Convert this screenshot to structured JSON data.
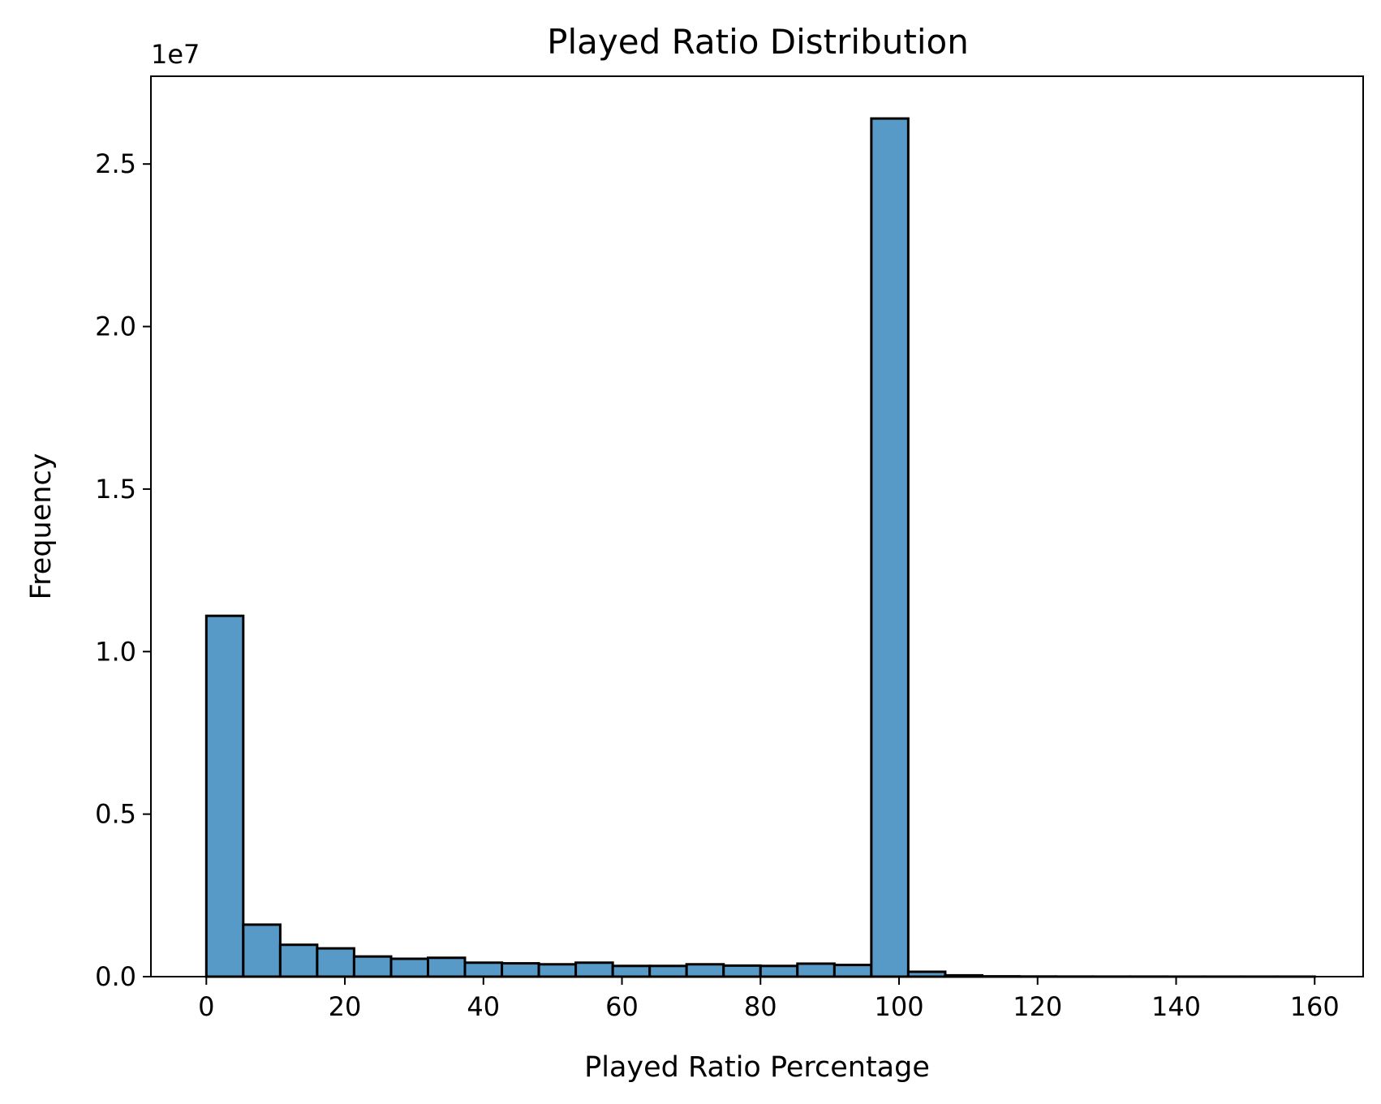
{
  "chart_data": {
    "type": "bar",
    "title": "Played Ratio Distribution",
    "xlabel": "Played Ratio Percentage",
    "ylabel": "Frequency",
    "y_offset_label": "1e7",
    "bar_color": "#5799c7",
    "edge_color": "#000000",
    "xlim": [
      -8,
      167
    ],
    "ylim": [
      0,
      2.77
    ],
    "grid": false,
    "x_ticks": [
      0,
      20,
      40,
      60,
      80,
      100,
      120,
      140,
      160
    ],
    "x_tick_labels": [
      "0",
      "20",
      "40",
      "60",
      "80",
      "100",
      "120",
      "140",
      "160"
    ],
    "y_ticks": [
      0,
      0.5,
      1.0,
      1.5,
      2.0,
      2.5
    ],
    "y_tick_labels": [
      "0.0",
      "0.5",
      "1.0",
      "1.5",
      "2.0",
      "2.5"
    ],
    "bin_edges": [
      0,
      5.33,
      10.67,
      16,
      21.33,
      26.67,
      32,
      37.33,
      42.67,
      48,
      53.33,
      58.67,
      64,
      69.33,
      74.67,
      80,
      85.33,
      90.67,
      96,
      101.33,
      106.67,
      112,
      117.33,
      122.67,
      128,
      133.33,
      138.67,
      144,
      149.33,
      154.67,
      160
    ],
    "values": [
      1.11,
      0.16,
      0.098,
      0.087,
      0.062,
      0.055,
      0.058,
      0.043,
      0.041,
      0.038,
      0.043,
      0.033,
      0.033,
      0.038,
      0.034,
      0.033,
      0.04,
      0.036,
      2.64,
      0.015,
      0.004,
      0.001,
      0.0005,
      0.0003,
      0.0002,
      0.0002,
      0.0001,
      0.0001,
      0.0001,
      0.0001
    ]
  }
}
